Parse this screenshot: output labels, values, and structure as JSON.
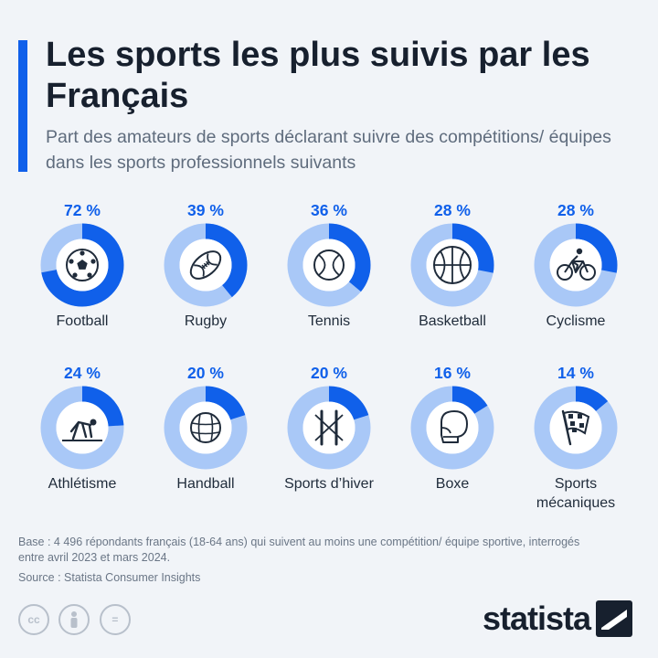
{
  "title": "Les sports les plus suivis par les Français",
  "subtitle": "Part des amateurs de sports déclarant suivre des compétitions/ équipes dans les sports professionnels suivants",
  "colors": {
    "accent": "#1060ea",
    "track": "#a9c8f7",
    "inner": "#ffffff",
    "icon": "#1f2b3a"
  },
  "chart_data": {
    "type": "donut",
    "title": "Les sports les plus suivis par les Français",
    "subtitle": "Part des amateurs de sports déclarant suivre des compétitions/ équipes dans les sports professionnels suivants",
    "unit": "%",
    "items": [
      {
        "label": "Football",
        "value": 72,
        "display": "72 %",
        "icon": "football-icon"
      },
      {
        "label": "Rugby",
        "value": 39,
        "display": "39 %",
        "icon": "rugby-ball-icon"
      },
      {
        "label": "Tennis",
        "value": 36,
        "display": "36 %",
        "icon": "tennis-ball-icon"
      },
      {
        "label": "Basketball",
        "value": 28,
        "display": "28 %",
        "icon": "basketball-icon"
      },
      {
        "label": "Cyclisme",
        "value": 28,
        "display": "28 %",
        "icon": "cyclist-icon"
      },
      {
        "label": "Athlétisme",
        "value": 24,
        "display": "24 %",
        "icon": "sprinter-icon"
      },
      {
        "label": "Handball",
        "value": 20,
        "display": "20 %",
        "icon": "handball-icon"
      },
      {
        "label": "Sports d’hiver",
        "value": 20,
        "display": "20 %",
        "icon": "skis-icon"
      },
      {
        "label": "Boxe",
        "value": 16,
        "display": "16 %",
        "icon": "boxing-glove-icon"
      },
      {
        "label": "Sports mécaniques",
        "value": 14,
        "display": "14 %",
        "icon": "checkered-flag-icon"
      }
    ]
  },
  "footnote": "Base : 4 496 répondants français (18-64 ans) qui suivent au moins une compétition/ équipe sportive, interrogés entre avril 2023 et mars 2024.",
  "source": "Source : Statista Consumer Insights",
  "license_icons": [
    "cc-icon",
    "attribution-icon",
    "no-derivatives-icon"
  ],
  "license_marks": [
    "cc",
    "",
    "="
  ],
  "brand": "statista"
}
